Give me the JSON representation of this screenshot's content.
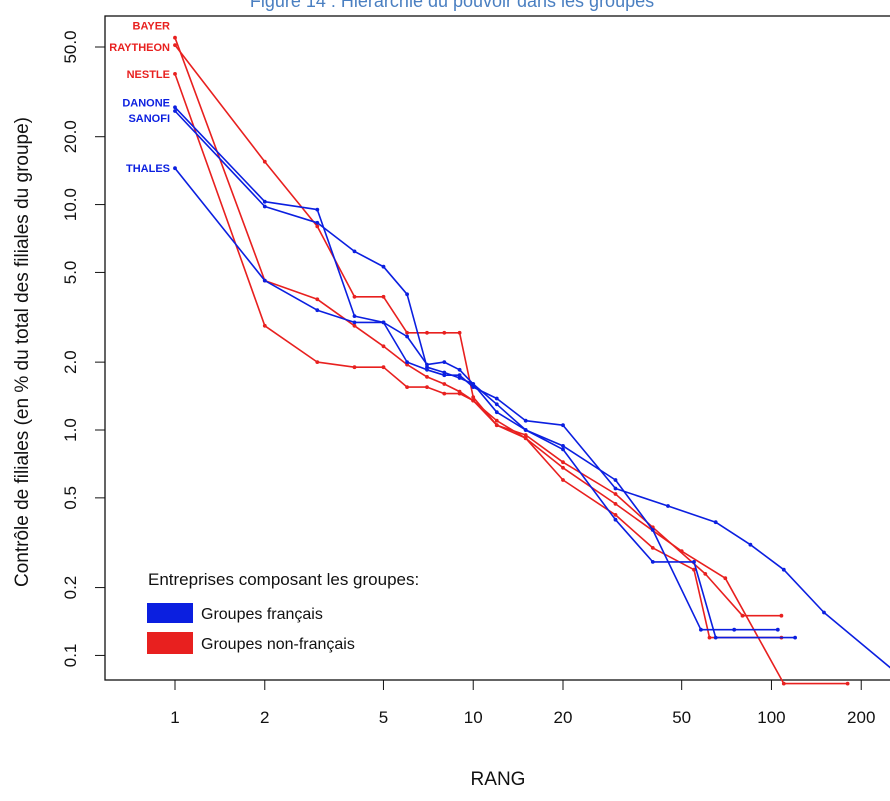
{
  "figure": {
    "title": "Figure 14 : Hiérarchie du pouvoir dans les groupes",
    "title_color": "#4a7fc1"
  },
  "chart_data": {
    "type": "line",
    "title": "Figure 14 : Hiérarchie du pouvoir dans les groupes",
    "xlabel": "RANG",
    "ylabel": "Contrôle de filiales (en % du total des filiales du groupe)",
    "x_scale": "log",
    "y_scale": "log",
    "xlim": [
      0.8,
      270
    ],
    "ylim": [
      0.065,
      60
    ],
    "x_ticks": [
      1,
      2,
      5,
      10,
      20,
      50,
      100,
      200
    ],
    "x_tick_labels": [
      "1",
      "2",
      "5",
      "10",
      "20",
      "50",
      "100",
      "200"
    ],
    "y_ticks": [
      0.1,
      0.2,
      0.5,
      1,
      2,
      5,
      10,
      20,
      50
    ],
    "y_tick_labels": [
      "0.1",
      "0.2",
      "0.5",
      "1.0",
      "2.0",
      "5.0",
      "10.0",
      "20.0",
      "50.0"
    ],
    "grid": false,
    "legend": {
      "title": "Entreprises composant les groupes:",
      "placement": "bottom-left",
      "entries": [
        {
          "label": "Groupes français",
          "color": "#0b1fe0"
        },
        {
          "label": "Groupes non-français",
          "color": "#e8201f"
        }
      ]
    },
    "series": [
      {
        "name": "BAYER",
        "group": "non-français",
        "color": "#e8201f",
        "x": [
          1,
          2,
          3,
          4,
          5,
          6,
          7,
          8,
          9,
          10,
          12,
          15,
          20,
          30,
          50,
          70,
          110,
          180
        ],
        "y": [
          55,
          4.6,
          3.8,
          2.9,
          2.35,
          1.95,
          1.72,
          1.6,
          1.48,
          1.35,
          1.1,
          0.92,
          0.68,
          0.47,
          0.29,
          0.22,
          0.075,
          0.075
        ]
      },
      {
        "name": "RAYTHEON",
        "group": "non-français",
        "color": "#e8201f",
        "x": [
          1,
          2,
          3,
          4,
          5,
          6,
          7,
          8,
          9,
          10,
          12,
          15,
          20,
          30,
          40,
          60,
          80,
          108
        ],
        "y": [
          51,
          15.5,
          8,
          3.9,
          3.9,
          2.7,
          2.7,
          2.7,
          2.7,
          1.4,
          1.05,
          0.95,
          0.72,
          0.52,
          0.37,
          0.23,
          0.15,
          0.15
        ]
      },
      {
        "name": "NESTLE",
        "group": "non-français",
        "color": "#e8201f",
        "x": [
          1,
          2,
          3,
          4,
          5,
          6,
          7,
          8,
          9,
          10,
          12,
          15,
          20,
          30,
          40,
          55,
          62,
          108
        ],
        "y": [
          38,
          2.9,
          2.0,
          1.9,
          1.9,
          1.55,
          1.55,
          1.45,
          1.45,
          1.35,
          1.05,
          0.92,
          0.6,
          0.42,
          0.3,
          0.24,
          0.12,
          0.12
        ]
      },
      {
        "name": "DANONE",
        "group": "français",
        "color": "#0b1fe0",
        "x": [
          1,
          2,
          3,
          4,
          5,
          6,
          7,
          8,
          9,
          10,
          12,
          15,
          20,
          30,
          45,
          65,
          85,
          110,
          150,
          280
        ],
        "y": [
          27,
          10.3,
          9.5,
          3.2,
          3.0,
          2.0,
          1.85,
          1.75,
          1.75,
          1.55,
          1.38,
          1.1,
          1.05,
          0.55,
          0.46,
          0.39,
          0.31,
          0.24,
          0.155,
          0.078
        ]
      },
      {
        "name": "SANOFI",
        "group": "français",
        "color": "#0b1fe0",
        "x": [
          1,
          2,
          3,
          4,
          5,
          6,
          7,
          8,
          9,
          10,
          12,
          15,
          20,
          30,
          40,
          58,
          75,
          105
        ],
        "y": [
          26,
          9.8,
          8.3,
          6.2,
          5.3,
          4.0,
          1.9,
          1.8,
          1.7,
          1.6,
          1.3,
          1.0,
          0.85,
          0.6,
          0.36,
          0.13,
          0.13,
          0.13
        ]
      },
      {
        "name": "THALES",
        "group": "français",
        "color": "#0b1fe0",
        "x": [
          1,
          2,
          3,
          4,
          5,
          6,
          7,
          8,
          9,
          10,
          12,
          15,
          20,
          30,
          40,
          55,
          65,
          120
        ],
        "y": [
          14.5,
          4.6,
          3.4,
          3.0,
          3.0,
          2.6,
          1.95,
          2.0,
          1.85,
          1.6,
          1.2,
          1.0,
          0.82,
          0.4,
          0.26,
          0.26,
          0.12,
          0.12
        ]
      }
    ]
  }
}
